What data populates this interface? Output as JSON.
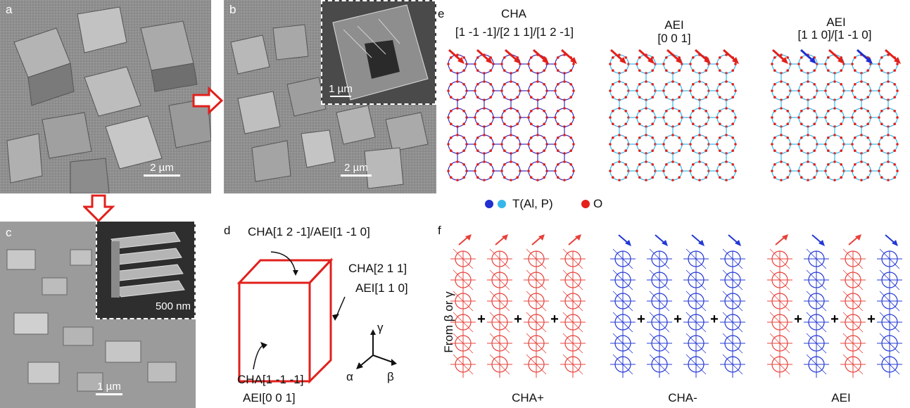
{
  "panels": {
    "a": {
      "label": "a",
      "scale": "2 µm"
    },
    "b": {
      "label": "b",
      "scale": "2 µm",
      "inset_scale": "1 µm"
    },
    "c": {
      "label": "c",
      "scale": "1 µm",
      "inset_scale": "500 nm"
    },
    "d": {
      "label": "d",
      "top_face": "CHA[1 2 -1]/AEI[1 -1 0]",
      "right_face_1": "CHA[2 1 1]",
      "right_face_2": "AEI[1 1 0]",
      "front_face_1": "CHA[1 -1 -1]",
      "front_face_2": "AEI[0 0 1]",
      "axis_gamma": "γ",
      "axis_alpha": "α",
      "axis_beta": "β",
      "edge_color": "#e0201c"
    },
    "e": {
      "label": "e",
      "structures": [
        {
          "title": "CHA",
          "subtitle": "[1 -1 -1]/[2 1 1]/[1 2 -1]"
        },
        {
          "title": "AEI",
          "subtitle": "[0 0 1]"
        },
        {
          "title": "AEI",
          "subtitle": "[1 1 0]/[1 -1 0]"
        }
      ],
      "legend_t": "T(Al, P)",
      "legend_o": "O",
      "colors": {
        "t_dark": "#1f2fd0",
        "t_light": "#35b6ea",
        "o": "#e3201b"
      }
    },
    "f": {
      "label": "f",
      "ylabel": "From β or γ",
      "groups": [
        "CHA+",
        "CHA-",
        "AEI"
      ],
      "plus": "+",
      "colors": {
        "red": "#e8413a",
        "blue": "#2338d6"
      }
    }
  }
}
